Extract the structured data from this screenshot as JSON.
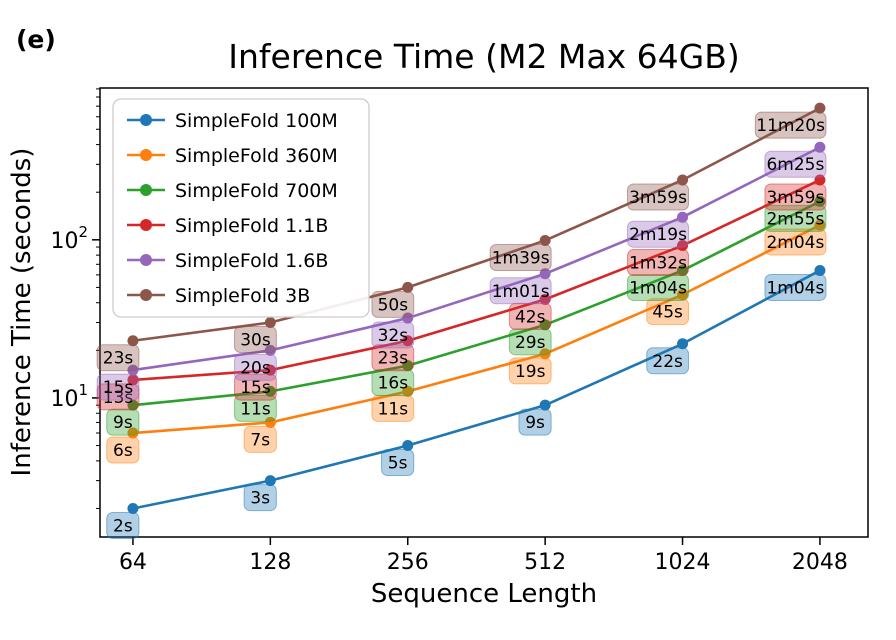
{
  "figure": {
    "panel_label": "(e)"
  },
  "chart_data": {
    "type": "line",
    "title": "Inference Time (M2 Max 64GB)",
    "xlabel": "Sequence Length",
    "ylabel": "Inference Time (seconds)",
    "x_scale": "log2",
    "y_scale": "log10",
    "grid": false,
    "legend_position": "upper left",
    "x": [
      64,
      128,
      256,
      512,
      1024,
      2048
    ],
    "x_tick_labels": [
      "64",
      "128",
      "256",
      "512",
      "1024",
      "2048"
    ],
    "xlim": [
      54.2,
      2610
    ],
    "ylim": [
      1.32,
      912
    ],
    "y_ticks": [
      {
        "value": 10,
        "base": "10",
        "exponent": "1"
      },
      {
        "value": 100,
        "base": "10",
        "exponent": "2"
      }
    ],
    "series": [
      {
        "name": "SimpleFold 100M",
        "color": "#1f77b4",
        "values_seconds": [
          2,
          3,
          5,
          9,
          22,
          64
        ],
        "labels": [
          "2s",
          "3s",
          "5s",
          "9s",
          "22s",
          "1m04s"
        ]
      },
      {
        "name": "SimpleFold 360M",
        "color": "#ff7f0e",
        "values_seconds": [
          6,
          7,
          11,
          19,
          45,
          124
        ],
        "labels": [
          "6s",
          "7s",
          "11s",
          "19s",
          "45s",
          "2m04s"
        ]
      },
      {
        "name": "SimpleFold 700M",
        "color": "#2ca02c",
        "values_seconds": [
          9,
          11,
          16,
          29,
          64,
          175
        ],
        "labels": [
          "9s",
          "11s",
          "16s",
          "29s",
          "1m04s",
          "2m55s"
        ]
      },
      {
        "name": "SimpleFold 1.1B",
        "color": "#d62728",
        "values_seconds": [
          13,
          15,
          23,
          42,
          92,
          239
        ],
        "labels": [
          "13s",
          "15s",
          "23s",
          "42s",
          "1m32s",
          "3m59s"
        ]
      },
      {
        "name": "SimpleFold 1.6B",
        "color": "#9467bd",
        "values_seconds": [
          15,
          20,
          32,
          61,
          139,
          385
        ],
        "labels": [
          "15s",
          "20s",
          "32s",
          "1m01s",
          "2m19s",
          "6m25s"
        ]
      },
      {
        "name": "SimpleFold 3B",
        "color": "#8c564b",
        "values_seconds": [
          23,
          30,
          50,
          99,
          239,
          680
        ],
        "labels": [
          "23s",
          "30s",
          "50s",
          "1m39s",
          "3m59s",
          "11m20s"
        ]
      }
    ]
  }
}
